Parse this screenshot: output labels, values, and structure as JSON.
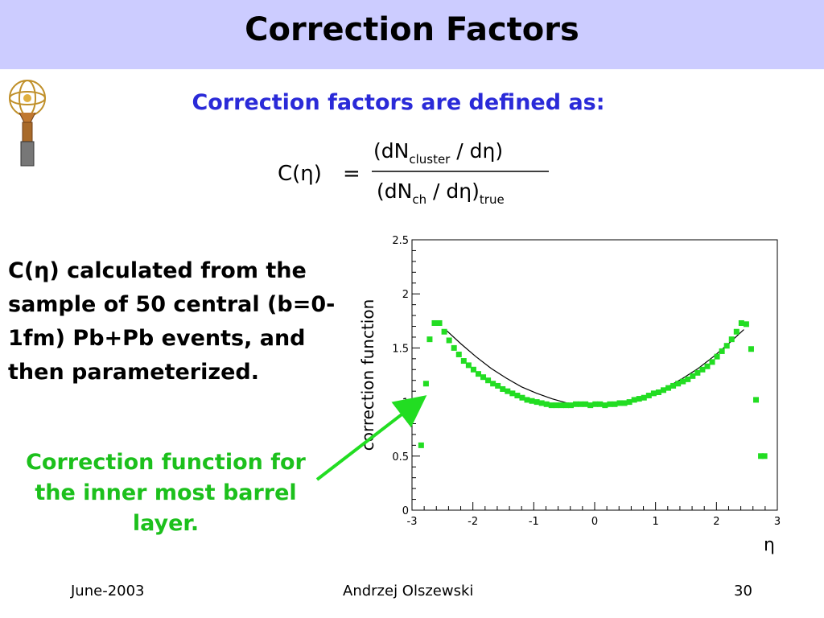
{
  "slide": {
    "title": "Correction Factors",
    "subtitle": "Correction factors are defined as:",
    "description": "C(η) calculated from the sample of 50 central (b=0-1fm) Pb+Pb events, and then parameterized.",
    "caption": "Correction function for the inner most barrel layer.",
    "footer": {
      "date": "June-2003",
      "author": "Andrzej Olszewski",
      "page": "30"
    }
  },
  "formula": {
    "lhs": "C(η)",
    "equals": "=",
    "num_main": "(dN",
    "num_sub": "cluster",
    "num_rest": " / dη)",
    "den_main": "(dN",
    "den_sub": "ch",
    "den_rest": " / dη)",
    "den_sub2": "true"
  },
  "colors": {
    "header_bg": "#ccccff",
    "subtitle": "#2a2ad8",
    "caption": "#1cc01c",
    "points": "#22dd22",
    "arrow": "#22dd22"
  },
  "chart_data": {
    "type": "scatter",
    "title": "",
    "xlabel": "η",
    "ylabel": "correction function",
    "xlim": [
      -3,
      3
    ],
    "ylim": [
      0,
      2.5
    ],
    "grid": false,
    "xticks": [
      "-3",
      "-2",
      "-1",
      "0",
      "1",
      "2",
      "3"
    ],
    "yticks": [
      "0",
      "0.5",
      "1",
      "1.5",
      "2",
      "2.5"
    ],
    "series": [
      {
        "kind": "points",
        "x": [
          -2.85,
          -2.77,
          -2.71,
          -2.63,
          -2.55,
          -2.47,
          -2.39,
          -2.31,
          -2.23,
          -2.15,
          -2.07,
          -1.99,
          -1.91,
          -1.83,
          -1.75,
          -1.67,
          -1.59,
          -1.51,
          -1.43,
          -1.35,
          -1.27,
          -1.19,
          -1.11,
          -1.03,
          -0.95,
          -0.87,
          -0.79,
          -0.71,
          -0.63,
          -0.55,
          -0.47,
          -0.39,
          -0.31,
          -0.23,
          -0.15,
          -0.07,
          0.01,
          0.09,
          0.17,
          0.25,
          0.33,
          0.41,
          0.49,
          0.57,
          0.65,
          0.73,
          0.81,
          0.89,
          0.97,
          1.05,
          1.13,
          1.21,
          1.29,
          1.37,
          1.45,
          1.53,
          1.61,
          1.69,
          1.77,
          1.85,
          1.93,
          2.01,
          2.09,
          2.17,
          2.25,
          2.33,
          2.41,
          2.49,
          2.57,
          2.65,
          2.73,
          2.79
        ],
        "y": [
          0.6,
          1.17,
          1.58,
          1.73,
          1.73,
          1.65,
          1.57,
          1.5,
          1.44,
          1.38,
          1.34,
          1.3,
          1.26,
          1.23,
          1.2,
          1.17,
          1.15,
          1.12,
          1.1,
          1.08,
          1.06,
          1.04,
          1.02,
          1.01,
          1.0,
          0.99,
          0.98,
          0.97,
          0.97,
          0.97,
          0.97,
          0.97,
          0.98,
          0.98,
          0.98,
          0.97,
          0.98,
          0.98,
          0.97,
          0.98,
          0.98,
          0.99,
          0.99,
          1.0,
          1.02,
          1.03,
          1.04,
          1.06,
          1.08,
          1.09,
          1.11,
          1.13,
          1.15,
          1.17,
          1.19,
          1.21,
          1.24,
          1.27,
          1.3,
          1.33,
          1.37,
          1.42,
          1.47,
          1.52,
          1.58,
          1.65,
          1.73,
          1.72,
          1.49,
          1.02,
          0.5,
          0.5
        ]
      },
      {
        "kind": "fit",
        "x": [
          -2.45,
          -2.2,
          -1.95,
          -1.7,
          -1.45,
          -1.2,
          -0.95,
          -0.7,
          -0.45,
          -0.2,
          0,
          0.2,
          0.45,
          0.7,
          0.95,
          1.2,
          1.45,
          1.7,
          1.95,
          2.2,
          2.45
        ],
        "y": [
          1.67,
          1.54,
          1.42,
          1.31,
          1.22,
          1.14,
          1.08,
          1.03,
          0.99,
          0.97,
          0.97,
          0.97,
          0.99,
          1.03,
          1.08,
          1.14,
          1.22,
          1.31,
          1.42,
          1.54,
          1.67
        ]
      }
    ]
  }
}
